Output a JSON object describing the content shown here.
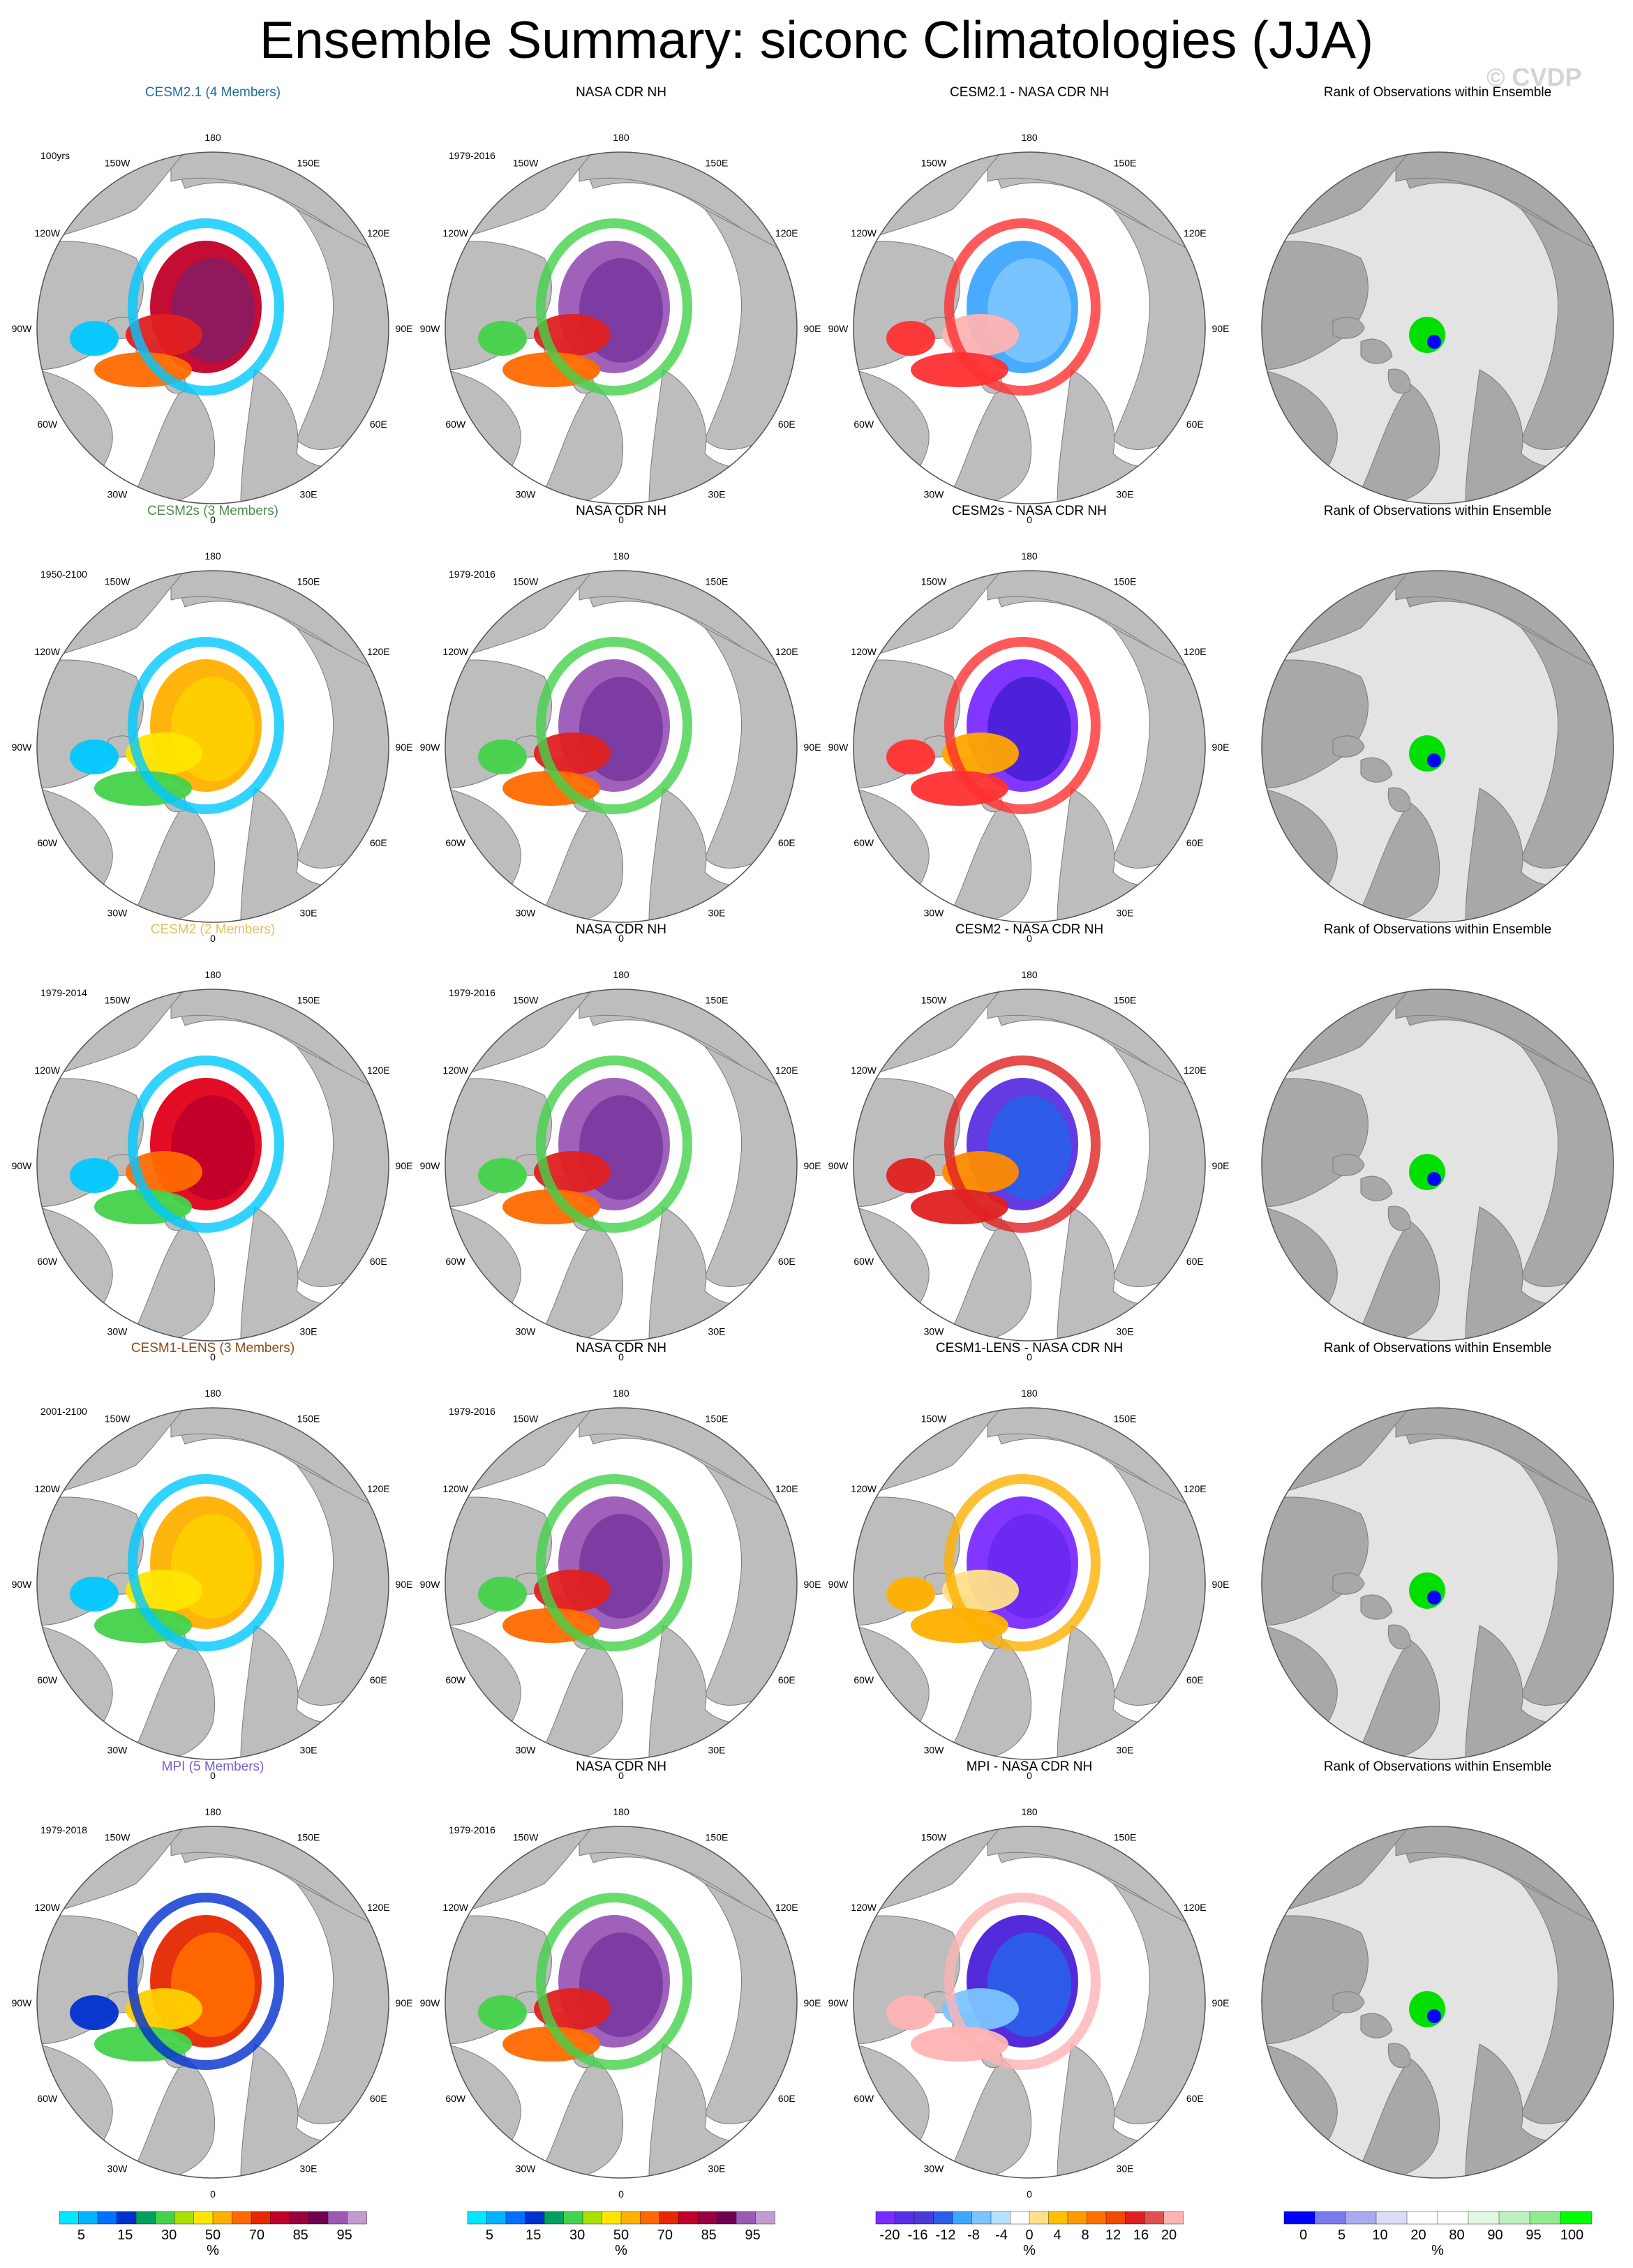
{
  "title": "Ensemble Summary: siconc Climatologies (JJA)",
  "watermark": "© CVDP",
  "colors": {
    "land": "#bdbdbd",
    "ocean": "#ffffff",
    "rank_bg": "#e3e3e3",
    "title_cesm21": "#1f6f9f",
    "title_cesm2s": "#4e8a4e",
    "title_cesm2": "#e2c25a",
    "title_cesm1lens": "#8c4a16",
    "title_mpi": "#7a5ccf"
  },
  "lon_labels": [
    "180",
    "150E",
    "120E",
    "90E",
    "60E",
    "30E",
    "0",
    "30W",
    "60W",
    "90W",
    "120W",
    "150W"
  ],
  "rows": [
    {
      "model_title": "CESM2.1 (4 Members)",
      "model_color": "title_cesm21",
      "years": "100yrs",
      "obs_title": "NASA CDR NH",
      "obs_years": "1979-2016",
      "diff_title": "CESM2.1 - NASA CDR NH",
      "rank_title": "Rank of Observations within Ensemble",
      "model_pattern": [
        "#c0002a",
        "#8b1a60",
        "#e02020",
        "#ff6a00",
        "#00c8ff"
      ],
      "diff_pattern": [
        "#3fa6ff",
        "#7cc4ff",
        "#ffb3b3",
        "#ff3030"
      ]
    },
    {
      "model_title": "CESM2s (3 Members)",
      "model_color": "title_cesm2s",
      "years": "1950-2100",
      "obs_title": "NASA CDR NH",
      "obs_years": "1979-2016",
      "diff_title": "CESM2s - NASA CDR NH",
      "rank_title": "Rank of Observations within Ensemble",
      "model_pattern": [
        "#ffb000",
        "#ffd000",
        "#ffe600",
        "#44d24a",
        "#00c8ff"
      ],
      "diff_pattern": [
        "#7a2cff",
        "#4a20d8",
        "#ffa500",
        "#ff3030"
      ]
    },
    {
      "model_title": "CESM2 (2 Members)",
      "model_color": "title_cesm2",
      "years": "1979-2014",
      "obs_title": "NASA CDR NH",
      "obs_years": "1979-2016",
      "diff_title": "CESM2 - NASA CDR NH",
      "rank_title": "Rank of Observations within Ensemble",
      "model_pattern": [
        "#e2001a",
        "#c0002a",
        "#ff6a00",
        "#44d24a",
        "#00c8ff"
      ],
      "diff_pattern": [
        "#5a30e0",
        "#2b5ee8",
        "#ff8a00",
        "#e02020"
      ]
    },
    {
      "model_title": "CESM1-LENS (3 Members)",
      "model_color": "title_cesm1lens",
      "years": "2001-2100",
      "obs_title": "NASA CDR NH",
      "obs_years": "1979-2016",
      "diff_title": "CESM1-LENS - NASA CDR NH",
      "rank_title": "Rank of Observations within Ensemble",
      "model_pattern": [
        "#ffb000",
        "#ffd000",
        "#ffe600",
        "#44d24a",
        "#00c8ff"
      ],
      "diff_pattern": [
        "#7a2cff",
        "#6a28f0",
        "#ffe08a",
        "#ffb000"
      ]
    },
    {
      "model_title": "MPI (5 Members)",
      "model_color": "title_mpi",
      "years": "1979-2018",
      "obs_title": "NASA CDR NH",
      "obs_years": "1979-2016",
      "diff_title": "MPI - NASA CDR NH",
      "rank_title": "Rank of Observations within Ensemble",
      "model_pattern": [
        "#e62800",
        "#ff6a00",
        "#ffd000",
        "#44d24a",
        "#0030d0"
      ],
      "diff_pattern": [
        "#4a20d8",
        "#2b5ee8",
        "#7cc4ff",
        "#ffb3b3"
      ]
    }
  ],
  "colorbars": [
    {
      "kind": "model",
      "unit": "%",
      "colors": [
        "#00e8ff",
        "#00b4ff",
        "#0070ff",
        "#0030d0",
        "#00a060",
        "#44d24a",
        "#a8e000",
        "#ffe600",
        "#ffb000",
        "#ff6a00",
        "#e62800",
        "#c0002a",
        "#9a0040",
        "#70004f",
        "#9b59b6",
        "#c39bd3"
      ],
      "labels": [
        "5",
        "15",
        "30",
        "50",
        "70",
        "85",
        "95"
      ]
    },
    {
      "kind": "obs",
      "unit": "%",
      "colors": [
        "#00e8ff",
        "#00b4ff",
        "#0070ff",
        "#0030d0",
        "#00a060",
        "#44d24a",
        "#a8e000",
        "#ffe600",
        "#ffb000",
        "#ff6a00",
        "#e62800",
        "#c0002a",
        "#9a0040",
        "#70004f",
        "#9b59b6",
        "#c39bd3"
      ],
      "labels": [
        "5",
        "15",
        "30",
        "50",
        "70",
        "85",
        "95"
      ]
    },
    {
      "kind": "diff",
      "unit": "%",
      "colors": [
        "#7a2cff",
        "#5a2ee8",
        "#4a3ad8",
        "#2b5ee8",
        "#3fa6ff",
        "#7cc4ff",
        "#b7e2ff",
        "#ffffff",
        "#ffe08a",
        "#ffc000",
        "#ff9a00",
        "#ff7000",
        "#f04a00",
        "#e02020",
        "#e05050",
        "#ffb3b3"
      ],
      "labels": [
        "-20",
        "-16",
        "-12",
        "-8",
        "-4",
        "0",
        "4",
        "8",
        "12",
        "16",
        "20"
      ]
    },
    {
      "kind": "rank",
      "unit": "%",
      "colors": [
        "#0000ff",
        "#7a7af0",
        "#aaaaf0",
        "#dcdcf8",
        "#ffffff",
        "#ffffff",
        "#e2f8e2",
        "#bff0bf",
        "#90ea90",
        "#00ff00"
      ],
      "labels": [
        "0",
        "5",
        "10",
        "20",
        "80",
        "90",
        "95",
        "100"
      ]
    }
  ]
}
